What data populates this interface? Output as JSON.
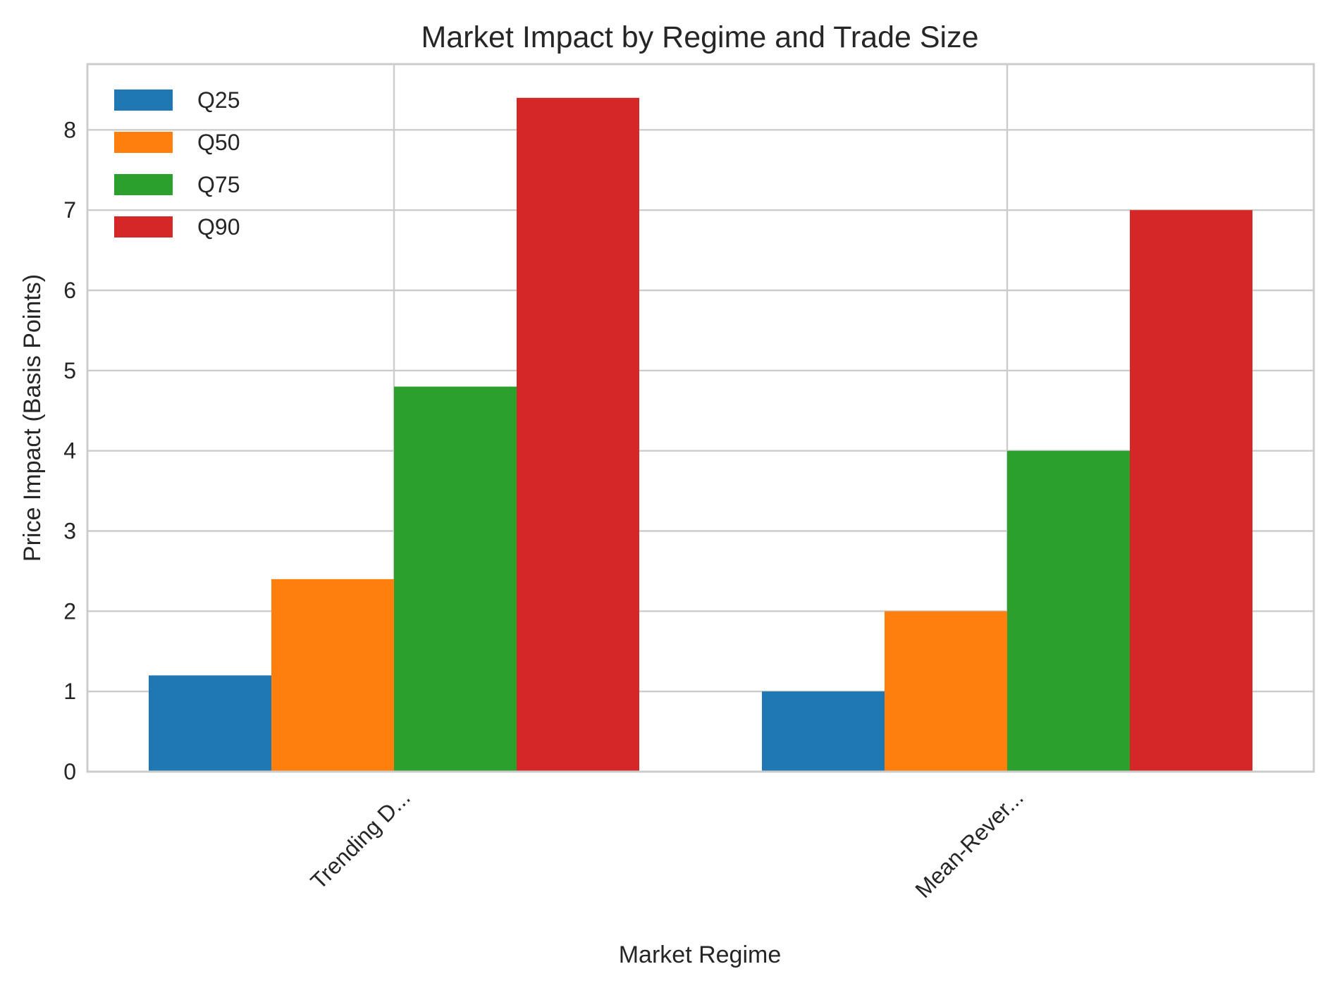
{
  "chart_data": {
    "type": "bar",
    "title": "Market Impact by Regime and Trade Size",
    "xlabel": "Market Regime",
    "ylabel": "Price Impact (Basis Points)",
    "categories": [
      "Trending D...",
      "Mean-Rever..."
    ],
    "series": [
      {
        "name": "Q25",
        "values": [
          1.2,
          1.0
        ],
        "color": "#1f77b4"
      },
      {
        "name": "Q50",
        "values": [
          2.4,
          2.0
        ],
        "color": "#ff7f0e"
      },
      {
        "name": "Q75",
        "values": [
          4.8,
          4.0
        ],
        "color": "#2ca02c"
      },
      {
        "name": "Q90",
        "values": [
          8.4,
          7.0
        ],
        "color": "#d62728"
      }
    ],
    "ylim": [
      0,
      8.82
    ],
    "yticks": [
      0,
      1,
      2,
      3,
      4,
      5,
      6,
      7,
      8
    ],
    "grid": true,
    "legend_position": "top-left"
  }
}
